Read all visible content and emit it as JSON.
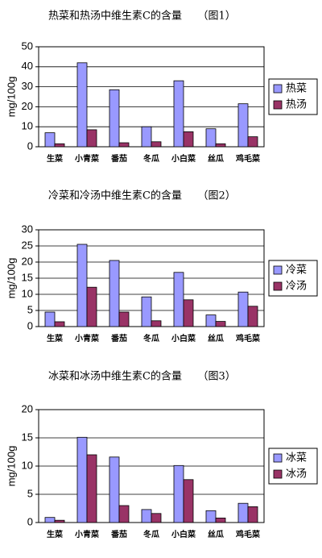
{
  "chart_data": [
    {
      "type": "bar",
      "title": "热菜和热汤中维生素C的含量　　（图1）",
      "y_label": "mg/100g",
      "categories": [
        "生菜",
        "小青菜",
        "番茄",
        "冬瓜",
        "小白菜",
        "丝瓜",
        "鸡毛菜"
      ],
      "series": [
        {
          "name": "热菜",
          "color": "#9999ff",
          "values": [
            7,
            42,
            28.5,
            10,
            33,
            9,
            21.5
          ]
        },
        {
          "name": "热汤",
          "color": "#993366",
          "values": [
            1.5,
            8.5,
            2,
            2.5,
            7.5,
            1.5,
            5
          ]
        }
      ],
      "ylim": [
        0,
        50
      ],
      "yticks": [
        0,
        10,
        20,
        30,
        40,
        50
      ],
      "grid": true,
      "legend": "right"
    },
    {
      "type": "bar",
      "title": "冷菜和冷汤中维生素C的含量　　（图2）",
      "y_label": "mg/100g",
      "categories": [
        "生菜",
        "小青菜",
        "番茄",
        "冬瓜",
        "小白菜",
        "丝瓜",
        "鸡毛菜"
      ],
      "series": [
        {
          "name": "冷菜",
          "color": "#9999ff",
          "values": [
            4.5,
            25.5,
            20.5,
            9.2,
            16.8,
            3.6,
            10.7
          ]
        },
        {
          "name": "冷汤",
          "color": "#993366",
          "values": [
            1.5,
            12.2,
            4.5,
            1.8,
            8.3,
            1.6,
            6.3
          ]
        }
      ],
      "ylim": [
        0,
        30
      ],
      "yticks": [
        0,
        5,
        10,
        15,
        20,
        25,
        30
      ],
      "grid": true,
      "legend": "right"
    },
    {
      "type": "bar",
      "title": "冰菜和冰汤中维生素C的含量　　（图3）",
      "y_label": "mg/100g",
      "categories": [
        "生菜",
        "小青菜",
        "番茄",
        "冬瓜",
        "小白菜",
        "丝瓜",
        "鸡毛菜"
      ],
      "series": [
        {
          "name": "冰菜",
          "color": "#9999ff",
          "values": [
            0.9,
            15.1,
            11.6,
            2.3,
            10.1,
            2.1,
            3.4
          ]
        },
        {
          "name": "冰汤",
          "color": "#993366",
          "values": [
            0.4,
            12.0,
            3.0,
            1.6,
            7.6,
            0.8,
            2.8
          ]
        }
      ],
      "ylim": [
        0,
        20
      ],
      "yticks": [
        0,
        5,
        10,
        15,
        20
      ],
      "grid": true,
      "legend": "right"
    }
  ]
}
